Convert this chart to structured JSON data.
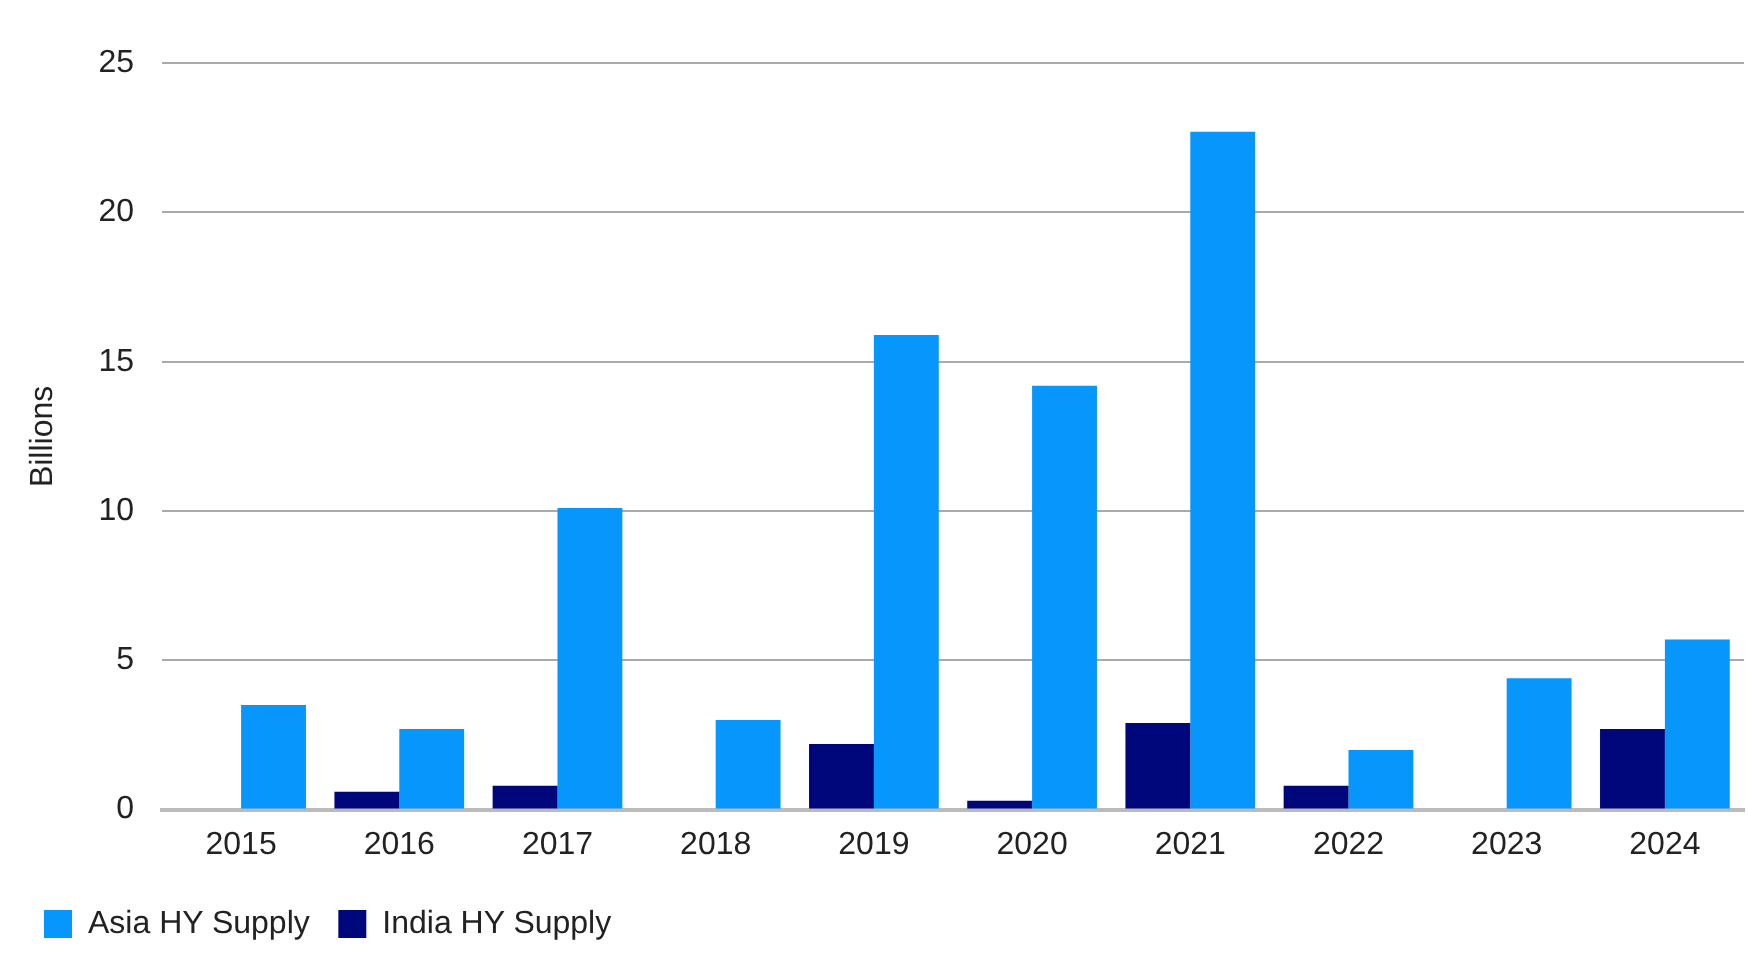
{
  "chart_data": {
    "type": "bar",
    "ylabel": "Billions",
    "categories": [
      "2015",
      "2016",
      "2017",
      "2018",
      "2019",
      "2020",
      "2021",
      "2022",
      "2023",
      "2024"
    ],
    "series": [
      {
        "name": "Asia HY Supply",
        "color": "#0796fb",
        "values": [
          3.5,
          2.7,
          10.1,
          3.0,
          15.9,
          14.2,
          22.7,
          2.0,
          4.4,
          5.7
        ]
      },
      {
        "name": "India HY Supply",
        "color": "#00077a",
        "values": [
          null,
          0.6,
          0.8,
          null,
          2.2,
          0.3,
          2.9,
          0.8,
          null,
          2.7
        ]
      }
    ],
    "ylim": [
      0,
      25
    ],
    "yticks": [
      0,
      5,
      10,
      15,
      20,
      25
    ],
    "grid": "y",
    "legend": "bottom left"
  }
}
